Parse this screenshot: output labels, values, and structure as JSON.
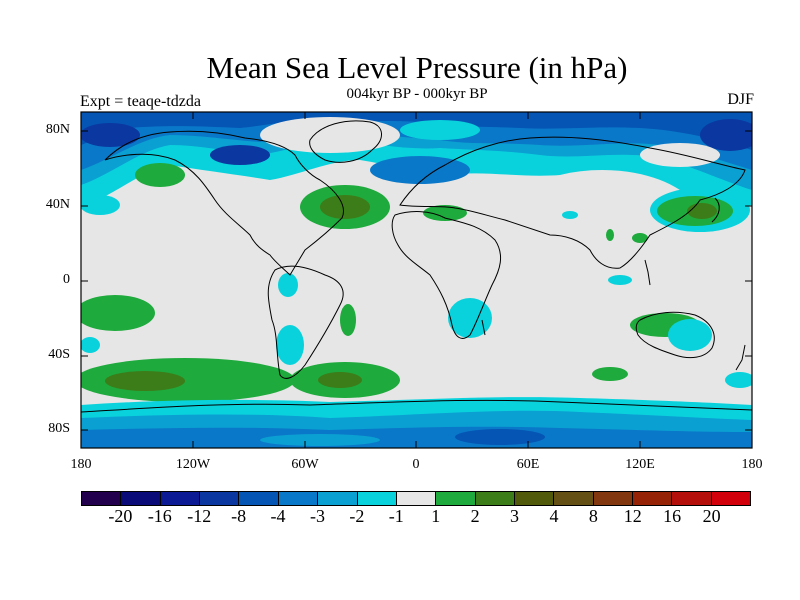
{
  "title": "Mean Sea Level Pressure (in hPa)",
  "subtitle": "004kyr BP - 000kyr BP",
  "experiment": "Expt = teaqe-tdzda",
  "season": "DJF",
  "lat_labels": [
    "80N",
    "40N",
    "0",
    "40S",
    "80S"
  ],
  "lon_labels": [
    "180",
    "120W",
    "60W",
    "0",
    "60E",
    "120E",
    "180"
  ],
  "legend": {
    "colors": [
      "#22004e",
      "#0a0a78",
      "#0c1a94",
      "#0a37a0",
      "#0555b4",
      "#0a78c8",
      "#0aa0d2",
      "#0ad2dc",
      "#e6e6e6",
      "#1eaa3c",
      "#3c7d19",
      "#505a0a",
      "#645014",
      "#82370f",
      "#962305",
      "#b40f0a",
      "#d2000a"
    ],
    "labels": [
      "-20",
      "-16",
      "-12",
      "-8",
      "-4",
      "-3",
      "-2",
      "-1",
      "1",
      "2",
      "3",
      "4",
      "8",
      "12",
      "16",
      "20"
    ]
  },
  "colors": {
    "neutral": "#e6e6e6",
    "cyan": "#0ad2dc",
    "lightblue": "#0aa0d2",
    "blue": "#0a78c8",
    "darkblue": "#0555b4",
    "navy": "#0a37a0",
    "green": "#1eaa3c",
    "darkgreen": "#3c7d19",
    "olive": "#505a0a"
  }
}
